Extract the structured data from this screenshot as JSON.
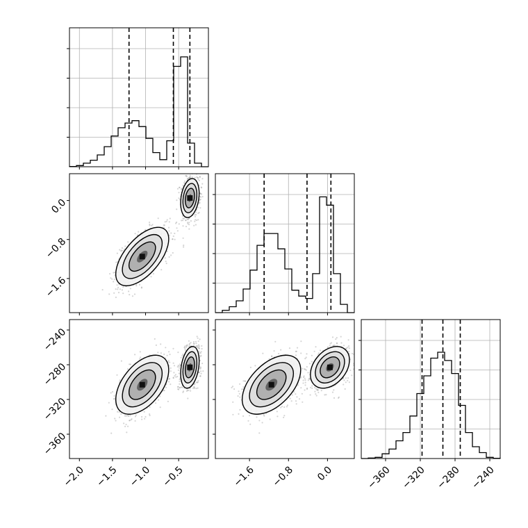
{
  "chart_data": {
    "type": "corner",
    "parameters": [
      {
        "range": [
          -2.15,
          -0.05
        ],
        "ticks": [
          -2.0,
          -1.5,
          -1.0,
          -0.5
        ],
        "tick_labels": [
          "−2.0",
          "−1.5",
          "−1.0",
          "−0.5"
        ],
        "quantiles": [
          -1.25,
          -0.58,
          -0.33
        ]
      },
      {
        "range": [
          -2.3,
          0.55
        ],
        "ticks": [
          -1.6,
          -0.8,
          0.0
        ],
        "tick_labels": [
          "−1.6",
          "−0.8",
          "0.0"
        ],
        "quantiles": [
          -1.3,
          -0.42,
          0.07
        ]
      },
      {
        "range": [
          -388,
          -228
        ],
        "ticks": [
          -360,
          -320,
          -280,
          -240
        ],
        "tick_labels": [
          "−360",
          "−320",
          "−280",
          "−240"
        ],
        "quantiles": [
          -318,
          -294,
          -274
        ]
      }
    ],
    "histograms": [
      {
        "counts": [
          0.002,
          0.01,
          0.03,
          0.055,
          0.1,
          0.17,
          0.26,
          0.33,
          0.37,
          0.39,
          0.34,
          0.24,
          0.12,
          0.06,
          0.22,
          0.85,
          0.93,
          0.2,
          0.03,
          0.0
        ]
      },
      {
        "counts": [
          0.0,
          0.02,
          0.05,
          0.1,
          0.2,
          0.36,
          0.57,
          0.67,
          0.67,
          0.54,
          0.37,
          0.19,
          0.14,
          0.12,
          0.33,
          0.98,
          0.91,
          0.33,
          0.07,
          0.0
        ]
      },
      {
        "counts": [
          0.0,
          0.004,
          0.01,
          0.04,
          0.08,
          0.15,
          0.22,
          0.36,
          0.55,
          0.7,
          0.85,
          0.9,
          0.83,
          0.72,
          0.45,
          0.22,
          0.1,
          0.05,
          0.01,
          0.002
        ]
      }
    ],
    "modes": [
      {
        "weight": 0.45,
        "mean": [
          -1.05,
          -1.15,
          -303
        ],
        "sd": [
          0.2,
          0.3,
          17
        ],
        "rho": [
          0.6,
          0.5,
          0.5
        ]
      },
      {
        "weight": 0.55,
        "mean": [
          -0.33,
          0.05,
          -283
        ],
        "sd": [
          0.07,
          0.2,
          12
        ],
        "rho": [
          0.25,
          0.3,
          0.35
        ]
      }
    ],
    "grid": true,
    "quantile_lines": "dashed"
  }
}
